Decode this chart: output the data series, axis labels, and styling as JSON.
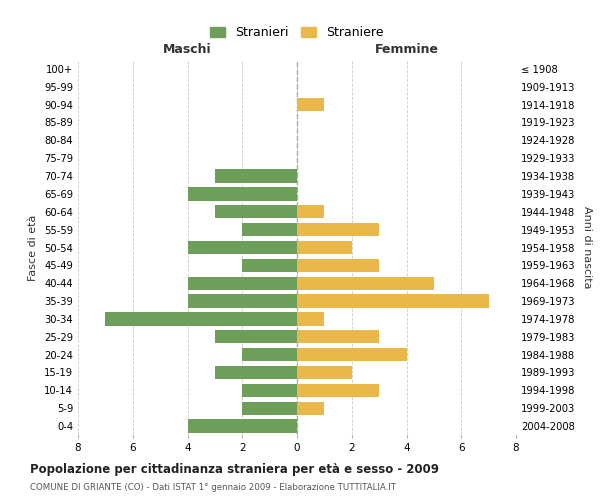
{
  "age_groups_bottom_to_top": [
    "0-4",
    "5-9",
    "10-14",
    "15-19",
    "20-24",
    "25-29",
    "30-34",
    "35-39",
    "40-44",
    "45-49",
    "50-54",
    "55-59",
    "60-64",
    "65-69",
    "70-74",
    "75-79",
    "80-84",
    "85-89",
    "90-94",
    "95-99",
    "100+"
  ],
  "birth_years_bottom_to_top": [
    "2004-2008",
    "1999-2003",
    "1994-1998",
    "1989-1993",
    "1984-1988",
    "1979-1983",
    "1974-1978",
    "1969-1973",
    "1964-1968",
    "1959-1963",
    "1954-1958",
    "1949-1953",
    "1944-1948",
    "1939-1943",
    "1934-1938",
    "1929-1933",
    "1924-1928",
    "1919-1923",
    "1914-1918",
    "1909-1913",
    "≤ 1908"
  ],
  "maschi_bottom_to_top": [
    4,
    2,
    2,
    3,
    2,
    3,
    7,
    4,
    4,
    2,
    4,
    2,
    3,
    4,
    3,
    0,
    0,
    0,
    0,
    0,
    0
  ],
  "femmine_bottom_to_top": [
    0,
    1,
    3,
    2,
    4,
    3,
    1,
    7,
    5,
    3,
    2,
    3,
    1,
    0,
    0,
    0,
    0,
    0,
    1,
    0,
    0
  ],
  "maschi_color": "#6d9e5a",
  "femmine_color": "#e8b84b",
  "title_main": "Popolazione per cittadinanza straniera per età e sesso - 2009",
  "title_sub": "COMUNE DI GRIANTE (CO) - Dati ISTAT 1° gennaio 2009 - Elaborazione TUTTITALIA.IT",
  "xlabel_left": "Maschi",
  "xlabel_right": "Femmine",
  "ylabel_left": "Fasce di età",
  "ylabel_right": "Anni di nascita",
  "legend_maschi": "Stranieri",
  "legend_femmine": "Straniere",
  "xlim": 8,
  "bar_height": 0.75,
  "background_color": "#ffffff",
  "grid_color": "#cccccc"
}
